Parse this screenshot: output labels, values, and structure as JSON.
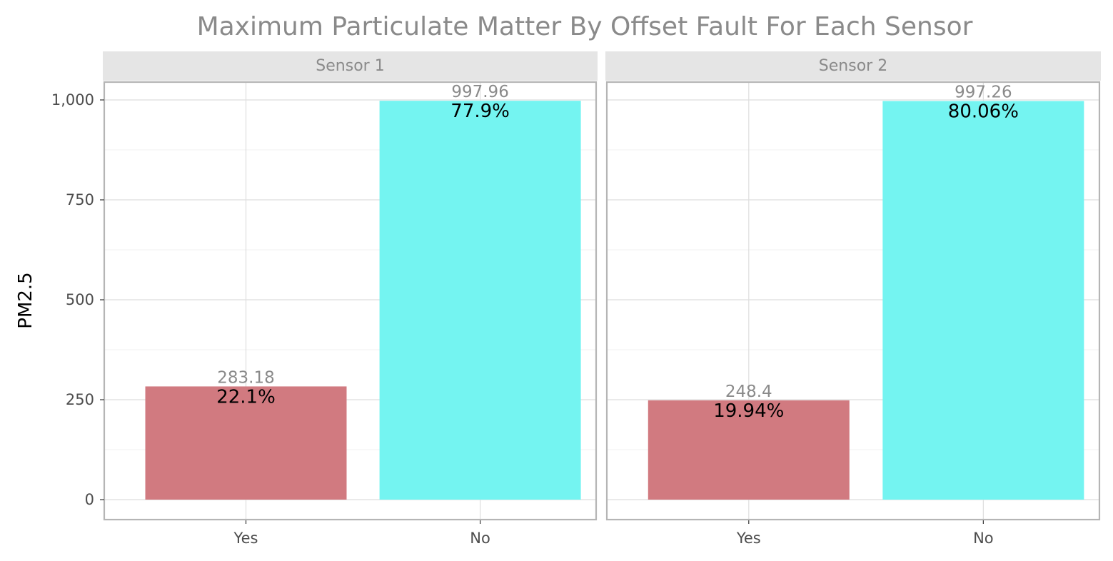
{
  "chart_data": {
    "type": "bar",
    "title": "Maximum Particulate Matter By Offset Fault For Each Sensor",
    "xlabel": "",
    "ylabel": "PM2.5",
    "ylim": [
      0,
      1000
    ],
    "y_ticks": [
      0,
      250,
      500,
      750,
      1000
    ],
    "y_tick_labels": [
      "0",
      "250",
      "500",
      "750",
      "1,000"
    ],
    "categories": [
      "Yes",
      "No"
    ],
    "grid": true,
    "colors": {
      "Yes": "#d17a80",
      "No": "#74f4f1"
    },
    "panels": [
      {
        "label": "Sensor 1",
        "values": [
          283.18,
          997.96
        ],
        "value_labels": [
          "283.18",
          "997.96"
        ],
        "percent_labels": [
          "22.1%",
          "77.9%"
        ]
      },
      {
        "label": "Sensor 2",
        "values": [
          248.4,
          997.26
        ],
        "value_labels": [
          "248.4",
          "997.26"
        ],
        "percent_labels": [
          "19.94%",
          "80.06%"
        ]
      }
    ]
  }
}
